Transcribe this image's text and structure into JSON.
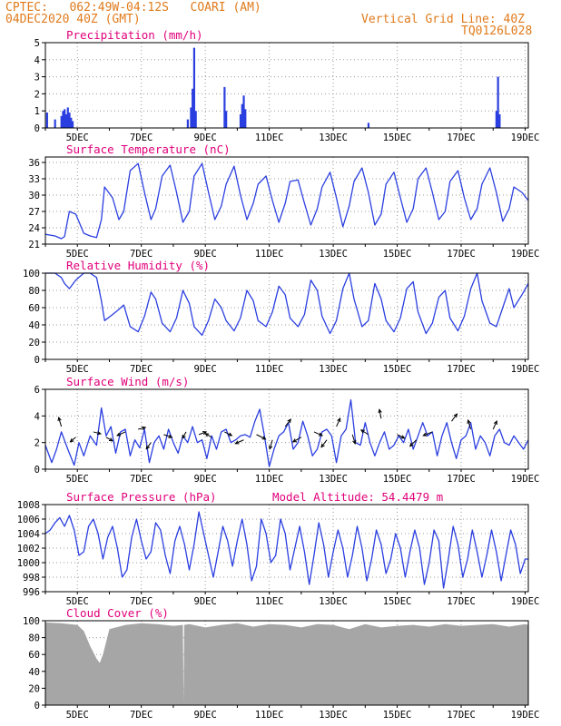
{
  "header": {
    "line1": "CPTEC:   062:49W-04:12S   COARI (AM)",
    "line2": "04DEC2020 40Z (GMT)",
    "right1": "Vertical Grid Line: 40Z",
    "right2": "TQ0126L028"
  },
  "colors": {
    "header_text": "#e07b1c",
    "panel_title": "#e0007a",
    "series": "#2b3fe0",
    "cloud_fill": "#a6a6a6",
    "grid": "#9a9a9a",
    "axis": "#000000"
  },
  "x_ticks": [
    "5DEC",
    "7DEC",
    "9DEC",
    "11DEC",
    "13DEC",
    "15DEC",
    "17DEC",
    "19DEC"
  ],
  "chart_data": [
    {
      "type": "bar",
      "title": "Precipitation (mm/h)",
      "ylim": [
        0,
        5
      ],
      "yticks": [
        0,
        1,
        2,
        3,
        4,
        5
      ],
      "x_unit": "days since 04DEC 00Z",
      "x": [
        0.05,
        0.3,
        0.5,
        0.55,
        0.6,
        0.65,
        0.7,
        0.75,
        0.8,
        0.85,
        4.45,
        4.55,
        4.6,
        4.65,
        4.7,
        5.6,
        5.65,
        6.1,
        6.15,
        6.2,
        6.25,
        10.1,
        14.1,
        14.15,
        14.2
      ],
      "values": [
        0.9,
        0.5,
        0.7,
        1.0,
        1.1,
        0.8,
        1.2,
        0.9,
        0.6,
        0.4,
        0.5,
        1.2,
        2.3,
        4.7,
        1.0,
        2.4,
        1.0,
        0.8,
        1.4,
        1.9,
        1.1,
        0.3,
        1.0,
        3.0,
        0.8
      ],
      "grid": true
    },
    {
      "type": "line",
      "title": "Surface Temperature (nC)",
      "ylim": [
        21,
        37
      ],
      "yticks": [
        21,
        24,
        27,
        30,
        33,
        36
      ],
      "x": [
        0,
        0.3,
        0.5,
        0.6,
        0.75,
        0.95,
        1.2,
        1.4,
        1.6,
        1.75,
        1.85,
        2.1,
        2.3,
        2.45,
        2.65,
        2.9,
        3.1,
        3.3,
        3.45,
        3.65,
        3.9,
        4.1,
        4.3,
        4.5,
        4.65,
        4.9,
        5.1,
        5.3,
        5.5,
        5.65,
        5.9,
        6.1,
        6.3,
        6.5,
        6.65,
        6.9,
        7.1,
        7.3,
        7.5,
        7.65,
        7.9,
        8.1,
        8.3,
        8.5,
        8.65,
        8.9,
        9.1,
        9.3,
        9.5,
        9.65,
        9.9,
        10.1,
        10.3,
        10.5,
        10.65,
        10.9,
        11.1,
        11.3,
        11.5,
        11.65,
        11.9,
        12.1,
        12.3,
        12.5,
        12.65,
        12.9,
        13.1,
        13.3,
        13.5,
        13.65,
        13.9,
        14.1,
        14.3,
        14.5,
        14.65,
        14.9,
        15.1
      ],
      "values": [
        22.8,
        22.5,
        22.0,
        22.4,
        27.0,
        26.5,
        23.0,
        22.5,
        22.2,
        25.5,
        31.5,
        29.5,
        25.5,
        27.0,
        34.5,
        35.8,
        30.5,
        25.5,
        27.5,
        33.5,
        35.5,
        30.5,
        25.0,
        27.0,
        33.5,
        35.8,
        30.5,
        25.5,
        28.0,
        32.0,
        35.3,
        30.0,
        25.5,
        28.5,
        32.0,
        33.5,
        29.0,
        25.0,
        28.5,
        32.5,
        32.8,
        28.5,
        24.5,
        27.5,
        31.5,
        34.2,
        29.5,
        24.2,
        28.0,
        32.5,
        35.0,
        30.5,
        24.5,
        26.5,
        32.0,
        34.2,
        29.5,
        25.0,
        27.5,
        33.0,
        35.0,
        30.5,
        25.5,
        27.0,
        32.5,
        34.5,
        29.5,
        25.5,
        27.5,
        32.0,
        35.0,
        30.5,
        25.2,
        27.5,
        31.5,
        30.5,
        29.0
      ],
      "grid": true
    },
    {
      "type": "line",
      "title": "Relative Humidity (%)",
      "ylim": [
        0,
        100
      ],
      "yticks": [
        0,
        20,
        40,
        60,
        80,
        100
      ],
      "x": [
        0,
        0.3,
        0.5,
        0.6,
        0.75,
        0.95,
        1.2,
        1.4,
        1.6,
        1.75,
        1.85,
        2.1,
        2.3,
        2.45,
        2.65,
        2.9,
        3.1,
        3.3,
        3.45,
        3.65,
        3.9,
        4.1,
        4.3,
        4.5,
        4.65,
        4.9,
        5.1,
        5.3,
        5.5,
        5.65,
        5.9,
        6.1,
        6.3,
        6.5,
        6.65,
        6.9,
        7.1,
        7.3,
        7.5,
        7.65,
        7.9,
        8.1,
        8.3,
        8.5,
        8.65,
        8.9,
        9.1,
        9.3,
        9.5,
        9.65,
        9.9,
        10.1,
        10.3,
        10.5,
        10.65,
        10.9,
        11.1,
        11.3,
        11.5,
        11.65,
        11.9,
        12.1,
        12.3,
        12.5,
        12.65,
        12.9,
        13.1,
        13.3,
        13.5,
        13.65,
        13.9,
        14.1,
        14.3,
        14.5,
        14.65,
        14.9,
        15.1
      ],
      "values": [
        100,
        100,
        95,
        88,
        82,
        92,
        100,
        100,
        95,
        68,
        45,
        52,
        58,
        63,
        38,
        32,
        50,
        78,
        70,
        42,
        32,
        48,
        80,
        65,
        38,
        28,
        45,
        70,
        60,
        45,
        33,
        48,
        80,
        68,
        45,
        38,
        55,
        85,
        75,
        48,
        38,
        52,
        92,
        80,
        50,
        30,
        45,
        82,
        100,
        70,
        38,
        45,
        88,
        70,
        45,
        32,
        48,
        82,
        90,
        55,
        30,
        42,
        72,
        80,
        48,
        33,
        50,
        82,
        100,
        68,
        42,
        38,
        60,
        82,
        60,
        75,
        88
      ],
      "grid": true
    },
    {
      "type": "line",
      "title": "Surface Wind (m/s)",
      "ylim": [
        0,
        6
      ],
      "yticks": [
        0,
        2,
        4,
        6
      ],
      "x": [
        0,
        0.2,
        0.35,
        0.5,
        0.7,
        0.9,
        1.05,
        1.2,
        1.4,
        1.6,
        1.75,
        1.9,
        2.05,
        2.2,
        2.35,
        2.5,
        2.65,
        2.8,
        2.95,
        3.1,
        3.25,
        3.4,
        3.55,
        3.7,
        3.85,
        4.0,
        4.15,
        4.3,
        4.45,
        4.6,
        4.75,
        4.9,
        5.05,
        5.2,
        5.35,
        5.5,
        5.65,
        5.8,
        5.95,
        6.1,
        6.25,
        6.4,
        6.55,
        6.7,
        6.85,
        7.0,
        7.15,
        7.3,
        7.45,
        7.6,
        7.75,
        7.9,
        8.05,
        8.2,
        8.35,
        8.5,
        8.65,
        8.8,
        8.95,
        9.1,
        9.25,
        9.4,
        9.55,
        9.7,
        9.85,
        10.0,
        10.15,
        10.3,
        10.45,
        10.6,
        10.75,
        10.9,
        11.05,
        11.2,
        11.35,
        11.5,
        11.65,
        11.8,
        11.95,
        12.1,
        12.25,
        12.4,
        12.55,
        12.7,
        12.85,
        13.0,
        13.15,
        13.3,
        13.45,
        13.6,
        13.75,
        13.9,
        14.05,
        14.2,
        14.35,
        14.5,
        14.65,
        14.8,
        14.95,
        15.1
      ],
      "values": [
        1.8,
        0.5,
        1.5,
        2.8,
        1.5,
        0.3,
        2.0,
        1.0,
        2.5,
        1.8,
        4.6,
        2.5,
        3.2,
        1.2,
        2.8,
        3.0,
        1.0,
        2.2,
        1.6,
        3.0,
        0.5,
        2.0,
        2.5,
        1.5,
        3.0,
        2.0,
        1.2,
        2.5,
        2.0,
        3.2,
        2.0,
        2.2,
        0.8,
        2.5,
        1.5,
        2.8,
        3.0,
        2.0,
        2.2,
        2.5,
        2.6,
        2.4,
        3.6,
        4.5,
        2.5,
        0.2,
        1.5,
        2.5,
        2.8,
        3.5,
        1.5,
        2.0,
        3.6,
        2.5,
        1.0,
        1.5,
        2.8,
        3.0,
        2.5,
        0.5,
        2.5,
        3.0,
        5.2,
        2.0,
        1.8,
        3.5,
        2.0,
        1.0,
        2.0,
        2.8,
        1.5,
        1.8,
        2.5,
        2.0,
        3.0,
        1.5,
        2.5,
        3.5,
        2.5,
        2.8,
        1.0,
        2.5,
        3.5,
        2.0,
        0.8,
        2.2,
        2.5,
        3.5,
        1.5,
        2.5,
        2.0,
        1.0,
        2.5,
        3.0,
        2.0,
        1.8,
        2.5,
        2.0,
        1.5,
        2.2
      ],
      "arrows": [
        {
          "x": 0.5,
          "y": 3.2,
          "dx": -3,
          "dy": -10
        },
        {
          "x": 0.95,
          "y": 2.4,
          "dx": -6,
          "dy": 5
        },
        {
          "x": 1.5,
          "y": 2.8,
          "dx": 8,
          "dy": 2
        },
        {
          "x": 1.9,
          "y": 2.4,
          "dx": 7,
          "dy": 4
        },
        {
          "x": 2.5,
          "y": 2.8,
          "dx": -9,
          "dy": 4
        },
        {
          "x": 2.9,
          "y": 3.0,
          "dx": 8,
          "dy": -2
        },
        {
          "x": 3.3,
          "y": 2.0,
          "dx": -5,
          "dy": 7
        },
        {
          "x": 3.7,
          "y": 2.6,
          "dx": 9,
          "dy": 3
        },
        {
          "x": 4.4,
          "y": 2.8,
          "dx": -4,
          "dy": 7
        },
        {
          "x": 4.8,
          "y": 2.6,
          "dx": 8,
          "dy": -3
        },
        {
          "x": 5.2,
          "y": 2.4,
          "dx": -7,
          "dy": -4
        },
        {
          "x": 5.6,
          "y": 2.8,
          "dx": 8,
          "dy": 4
        },
        {
          "x": 6.2,
          "y": 2.2,
          "dx": -9,
          "dy": 4
        },
        {
          "x": 6.6,
          "y": 2.6,
          "dx": 10,
          "dy": 5
        },
        {
          "x": 7.1,
          "y": 2.2,
          "dx": -3,
          "dy": 10
        },
        {
          "x": 7.5,
          "y": 3.2,
          "dx": 6,
          "dy": -8
        },
        {
          "x": 8.0,
          "y": 2.4,
          "dx": -9,
          "dy": 5
        },
        {
          "x": 8.4,
          "y": 2.8,
          "dx": 9,
          "dy": 4
        },
        {
          "x": 8.8,
          "y": 2.2,
          "dx": -6,
          "dy": 8
        },
        {
          "x": 9.1,
          "y": 3.2,
          "dx": 4,
          "dy": -9
        },
        {
          "x": 9.6,
          "y": 2.6,
          "dx": 3,
          "dy": 10
        },
        {
          "x": 10.1,
          "y": 2.6,
          "dx": -8,
          "dy": -5
        },
        {
          "x": 10.5,
          "y": 3.8,
          "dx": -2,
          "dy": -10
        },
        {
          "x": 11.0,
          "y": 2.6,
          "dx": 8,
          "dy": 4
        },
        {
          "x": 11.6,
          "y": 2.2,
          "dx": -7,
          "dy": 7
        },
        {
          "x": 12.1,
          "y": 2.8,
          "dx": -10,
          "dy": 4
        },
        {
          "x": 12.7,
          "y": 3.6,
          "dx": 6,
          "dy": -8
        },
        {
          "x": 13.3,
          "y": 3.0,
          "dx": -3,
          "dy": -10
        },
        {
          "x": 14.0,
          "y": 3.0,
          "dx": 4,
          "dy": -9
        }
      ],
      "grid": true
    },
    {
      "type": "line",
      "title": "Surface Pressure (hPa)",
      "annotation": "Model Altitude: 54.4479 m",
      "ylim": [
        996,
        1008
      ],
      "yticks": [
        996,
        998,
        1000,
        1002,
        1004,
        1006,
        1008
      ],
      "x": [
        0,
        0.15,
        0.3,
        0.45,
        0.6,
        0.75,
        0.9,
        1.05,
        1.2,
        1.35,
        1.5,
        1.65,
        1.8,
        1.95,
        2.1,
        2.25,
        2.4,
        2.55,
        2.7,
        2.85,
        3.0,
        3.15,
        3.3,
        3.45,
        3.6,
        3.75,
        3.9,
        4.05,
        4.2,
        4.35,
        4.5,
        4.65,
        4.8,
        4.95,
        5.1,
        5.25,
        5.4,
        5.55,
        5.7,
        5.85,
        6.0,
        6.15,
        6.3,
        6.45,
        6.6,
        6.75,
        6.9,
        7.05,
        7.2,
        7.35,
        7.5,
        7.65,
        7.8,
        7.95,
        8.1,
        8.25,
        8.4,
        8.55,
        8.7,
        8.85,
        9.0,
        9.15,
        9.3,
        9.45,
        9.6,
        9.75,
        9.9,
        10.05,
        10.2,
        10.35,
        10.5,
        10.65,
        10.8,
        10.95,
        11.1,
        11.25,
        11.4,
        11.55,
        11.7,
        11.85,
        12.0,
        12.15,
        12.3,
        12.45,
        12.6,
        12.75,
        12.9,
        13.05,
        13.2,
        13.35,
        13.5,
        13.65,
        13.8,
        13.95,
        14.1,
        14.25,
        14.4,
        14.55,
        14.7,
        14.85,
        15.0,
        15.1
      ],
      "values": [
        1004.0,
        1004.5,
        1005.5,
        1006.2,
        1005.0,
        1006.5,
        1004.5,
        1001.0,
        1001.5,
        1005.0,
        1006.0,
        1004.0,
        1000.5,
        1003.5,
        1005.0,
        1002.0,
        998.0,
        999.0,
        1003.5,
        1006.0,
        1003.0,
        1000.5,
        1001.5,
        1005.5,
        1004.5,
        1001.0,
        998.5,
        1003.0,
        1005.0,
        1002.5,
        999.0,
        1002.5,
        1007.0,
        1004.0,
        1001.0,
        998.0,
        1001.5,
        1005.0,
        1003.0,
        999.5,
        1003.0,
        1006.0,
        1002.5,
        997.5,
        999.5,
        1006.0,
        1004.0,
        1000.0,
        1001.0,
        1006.0,
        1004.0,
        999.0,
        1002.0,
        1005.0,
        1001.5,
        997.0,
        1001.0,
        1005.5,
        1002.5,
        998.0,
        1001.5,
        1004.5,
        1002.0,
        998.0,
        1001.0,
        1005.0,
        1002.0,
        997.5,
        1000.5,
        1004.5,
        1002.5,
        998.5,
        1000.5,
        1004.0,
        1002.0,
        998.0,
        1001.5,
        1004.5,
        1002.0,
        997.0,
        1000.0,
        1004.5,
        1003.0,
        996.5,
        1000.5,
        1005.0,
        1002.5,
        998.0,
        1000.5,
        1004.5,
        1001.5,
        998.0,
        1001.0,
        1004.5,
        1001.5,
        997.5,
        1001.0,
        1004.5,
        1002.5,
        998.5,
        1000.5,
        1000.5
      ],
      "grid": true
    },
    {
      "type": "area",
      "title": "Cloud Cover (%)",
      "ylim": [
        0,
        100
      ],
      "yticks": [
        0,
        20,
        40,
        60,
        80,
        100
      ],
      "x": [
        0,
        0.5,
        1.0,
        1.2,
        1.4,
        1.6,
        1.7,
        1.8,
        2.0,
        2.5,
        3.0,
        3.5,
        4.0,
        4.3,
        4.32,
        4.34,
        4.5,
        5.0,
        5.5,
        6.0,
        6.5,
        7.0,
        7.5,
        8.0,
        8.5,
        9.0,
        9.5,
        10.0,
        10.5,
        11.0,
        11.5,
        12.0,
        12.5,
        13.0,
        13.5,
        14.0,
        14.5,
        15.0,
        15.1
      ],
      "values": [
        98,
        97,
        95,
        88,
        70,
        55,
        50,
        60,
        90,
        95,
        97,
        96,
        94,
        95,
        3,
        95,
        96,
        92,
        95,
        97,
        93,
        96,
        95,
        92,
        96,
        95,
        90,
        96,
        92,
        94,
        95,
        93,
        96,
        94,
        95,
        96,
        93,
        96,
        95
      ],
      "grid": true
    }
  ]
}
